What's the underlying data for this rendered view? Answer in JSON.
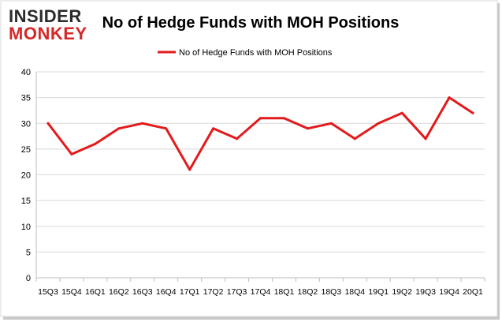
{
  "brand": {
    "line1": "INSIDER",
    "line2": "MONKEY",
    "colors": {
      "dark": "#2b2b2b",
      "red": "#d62828"
    }
  },
  "chart_data": {
    "type": "line",
    "title": "No of Hedge Funds with MOH Positions",
    "categories": [
      "15Q3",
      "15Q4",
      "16Q1",
      "16Q2",
      "16Q3",
      "16Q4",
      "17Q1",
      "17Q2",
      "17Q3",
      "17Q4",
      "18Q1",
      "18Q2",
      "18Q3",
      "18Q4",
      "19Q1",
      "19Q2",
      "19Q3",
      "19Q4",
      "20Q1"
    ],
    "series": [
      {
        "name": "No of Hedge Funds with MOH Positions",
        "color": "#e31a1c",
        "values": [
          30,
          24,
          26,
          29,
          30,
          29,
          21,
          29,
          27,
          31,
          31,
          29,
          30,
          27,
          30,
          32,
          27,
          35,
          32
        ]
      }
    ],
    "y_ticks": [
      0,
      5,
      10,
      15,
      20,
      25,
      30,
      35,
      40
    ],
    "ylim": [
      0,
      40
    ],
    "grid": true,
    "legend": "top-center",
    "xlabel": "",
    "ylabel": ""
  }
}
